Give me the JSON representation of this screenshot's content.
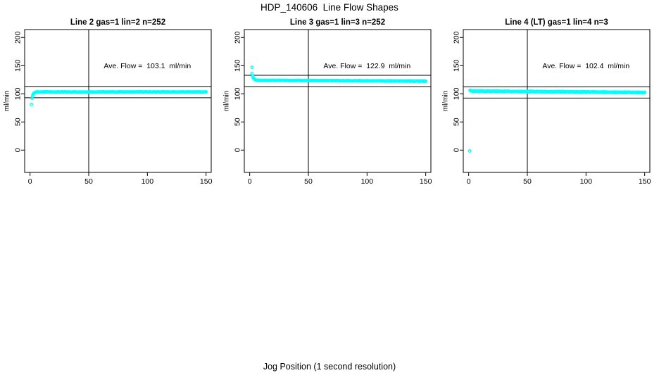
{
  "page": {
    "main_title": "HDP_140606  Line Flow Shapes",
    "bottom_axis_label": "Jog Position (1 second resolution)",
    "background_color": "#ffffff"
  },
  "chart_data": {
    "type": "scatter",
    "title": "HDP_140606  Line Flow Shapes",
    "xlabel": "Jog Position (1 second resolution)",
    "ylabel": "ml/min",
    "marker": "open-circle",
    "marker_color": "#00ffff",
    "line_color": "#000000",
    "grid": false,
    "xlim": [
      -4.6,
      154.4
    ],
    "ylim": [
      -39.6,
      214.1
    ],
    "xticks": [
      0,
      50,
      100,
      150
    ],
    "yticks": [
      0,
      50,
      100,
      150,
      200
    ],
    "panels": [
      {
        "title": "Line 2 gas=1 lin=2 n=252",
        "annotation": "Ave. Flow =  103.1  ml/min",
        "ave_flow": 103.1,
        "n": 252,
        "vline_x": 50,
        "hlines": [
          113.1,
          93.1
        ],
        "lead_points": [
          [
            1.3,
            81
          ],
          [
            1.8,
            92
          ],
          [
            2.2,
            96
          ],
          [
            2.6,
            98.5
          ],
          [
            3,
            100.3
          ],
          [
            3.5,
            101.2
          ],
          [
            4,
            101.9
          ],
          [
            4.5,
            102.4
          ],
          [
            5,
            102.8
          ]
        ],
        "flat_segment": {
          "x_from": 5.5,
          "x_to": 150,
          "x_step": 0.6,
          "y_start": 103.2,
          "y_end": 103.2,
          "jitter": 0.6
        }
      },
      {
        "title": "Line 3 gas=1 lin=3 n=252",
        "annotation": "Ave. Flow =  122.9  ml/min",
        "ave_flow": 122.9,
        "n": 252,
        "vline_x": 50,
        "hlines": [
          132.9,
          112.9
        ],
        "lead_points": [
          [
            2,
            147
          ],
          [
            2,
            136
          ],
          [
            2.5,
            131
          ],
          [
            3,
            128.5
          ],
          [
            3.5,
            127
          ],
          [
            4,
            126
          ],
          [
            4.5,
            125.2
          ],
          [
            5,
            124.6
          ],
          [
            5.8,
            124.1
          ],
          [
            6.6,
            123.7
          ]
        ],
        "flat_segment": {
          "x_from": 7.2,
          "x_to": 150,
          "x_step": 0.6,
          "y_start": 124.0,
          "y_end": 122.4,
          "jitter": 0.8
        }
      },
      {
        "title": "Line 4 (LT) gas=1 lin=4 n=3",
        "annotation": "Ave. Flow =  102.4  ml/min",
        "ave_flow": 102.4,
        "n": 3,
        "vline_x": 50,
        "hlines": [
          112.4,
          92.4
        ],
        "lead_points": [
          [
            1,
            -1.5
          ],
          [
            1.2,
            106
          ],
          [
            1.8,
            105.6
          ],
          [
            2.4,
            105.2
          ]
        ],
        "flat_segment": {
          "x_from": 1.5,
          "x_to": 150,
          "x_step": 0.45,
          "y_start": 104.8,
          "y_end": 102.2,
          "jitter": 1.4
        }
      }
    ]
  }
}
